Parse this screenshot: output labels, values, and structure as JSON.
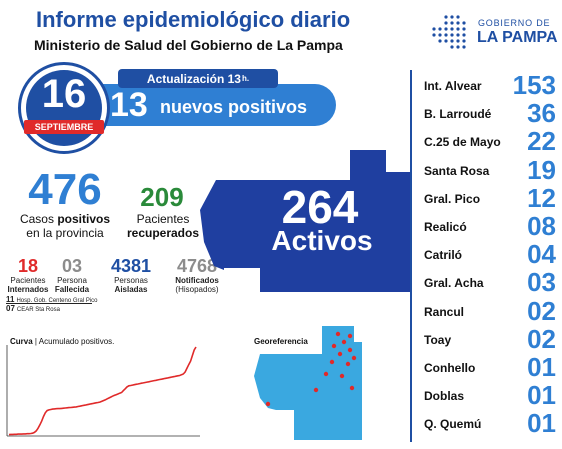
{
  "header": {
    "title": "Informe epidemiológico diario",
    "subtitle": "Ministerio de Salud del Gobierno de La Pampa"
  },
  "logo": {
    "line1": "GOBIERNO DE",
    "line2": "LA PAMPA",
    "icon": "dotted-province-logo-icon",
    "color": "#1f4fa3"
  },
  "update": {
    "label": "Actualización 13",
    "label_suffix": "h.",
    "new_count": "13",
    "new_label": "nuevos positivos"
  },
  "date": {
    "day": "16",
    "month": "SEPTIEMBRE"
  },
  "stats": {
    "cases": {
      "value": "476",
      "line1": "Casos ",
      "line1_bold": "positivos",
      "line2": "en la provincia"
    },
    "recovered": {
      "value": "209",
      "line1": "Pacientes",
      "line2": "recuperados"
    },
    "small": [
      {
        "value": "18",
        "line1": "Pacientes",
        "line2": "Internados",
        "color": "#e02a2a"
      },
      {
        "value": "03",
        "line1": "Persona",
        "line2": "Fallecida",
        "color": "#8c8c8c"
      },
      {
        "value": "4381",
        "line1": "Personas",
        "line2": "Aisladas",
        "color": "#1f4fa3"
      },
      {
        "value": "4768",
        "line1": "Notificados",
        "line2": "(Hisopados)",
        "color": "#8c8c8c"
      }
    ],
    "hospital": [
      {
        "value": "11",
        "text": "Hosp. Gob. Centeno Gral Pico"
      },
      {
        "value": "07",
        "text": "CEAR Sta Rosa"
      }
    ]
  },
  "active": {
    "value": "264",
    "label": "Activos"
  },
  "curve": {
    "title_bold": "Curva",
    "title_rest": " | Acumulado positivos.",
    "chart_data": {
      "type": "line",
      "title": "Curva | Acumulado positivos.",
      "series": [
        {
          "values": [
            2,
            3,
            3,
            4,
            4,
            5,
            5,
            5,
            6,
            6,
            7,
            7,
            8,
            10,
            14,
            22,
            36,
            55,
            75,
            100,
            120,
            132,
            136,
            138,
            140,
            141,
            142,
            143,
            143,
            144,
            145,
            146,
            147,
            148,
            149,
            150,
            151,
            152,
            154,
            156,
            158,
            160,
            162,
            164,
            166,
            168,
            170,
            172,
            174,
            176,
            178,
            182,
            186,
            190,
            195,
            200,
            205,
            210,
            214,
            218,
            222,
            226,
            230,
            240,
            250,
            260,
            266,
            268,
            270,
            272,
            274,
            276,
            278,
            280,
            282,
            284,
            286,
            288,
            290,
            292,
            294,
            296,
            298,
            300,
            302,
            304,
            306,
            308,
            310,
            312,
            314,
            316,
            318,
            320,
            322,
            326,
            330,
            340,
            360,
            380,
            400,
            430,
            460,
            476
          ]
        }
      ],
      "ylim": [
        0,
        476
      ],
      "color": "#e02a2a"
    }
  },
  "georef": {
    "title": "Georeferencia"
  },
  "locations": [
    {
      "name": "Int. Alvear",
      "value": "153"
    },
    {
      "name": "B. Larroudé",
      "value": "36"
    },
    {
      "name": "C.25 de Mayo",
      "value": "22"
    },
    {
      "name": "Santa Rosa",
      "value": "19"
    },
    {
      "name": "Gral. Pico",
      "value": "12"
    },
    {
      "name": "Realicó",
      "value": "08"
    },
    {
      "name": "Catriló",
      "value": "04"
    },
    {
      "name": "Gral. Acha",
      "value": "03"
    },
    {
      "name": "Rancul",
      "value": "02"
    },
    {
      "name": "Toay",
      "value": "02"
    },
    {
      "name": "Conhello",
      "value": "01"
    },
    {
      "name": "Doblas",
      "value": "01"
    },
    {
      "name": "Q. Quemú",
      "value": "01"
    }
  ],
  "colors": {
    "primary": "#1f4fa3",
    "accent": "#2f7fd3",
    "positive": "#e02a2a",
    "recovered": "#2a8a3a",
    "map": "#1f3fa0",
    "map_light": "#3aa8e0"
  }
}
